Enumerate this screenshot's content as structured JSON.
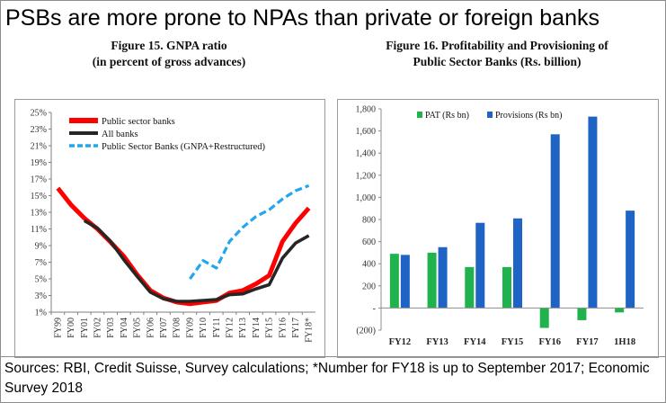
{
  "headline": "PSBs are more prone to NPAs than private or foreign banks",
  "sources": "Sources: RBI, Credit Suisse, Survey calculations; *Number for FY18 is up to September 2017; Economic Survey 2018",
  "chart_data": [
    {
      "type": "line",
      "title": "Figure 15. GNPA ratio",
      "subtitle": "(in percent of gross advances)",
      "x": [
        "FY99",
        "FY00",
        "FY01",
        "FY02",
        "FY03",
        "FY04",
        "FY05",
        "FY06",
        "FY07",
        "FY08",
        "FY09",
        "FY10",
        "FY11",
        "FY12",
        "FY13",
        "FY14",
        "FY15",
        "FY16",
        "FY17",
        "FY18*"
      ],
      "ylim": [
        1,
        25
      ],
      "yticks": [
        "1%",
        "3%",
        "5%",
        "7%",
        "9%",
        "11%",
        "13%",
        "15%",
        "17%",
        "19%",
        "21%",
        "23%",
        "25%"
      ],
      "grid": false,
      "legend_position": "top-left",
      "series": [
        {
          "name": "Public sector banks",
          "color": "#ff0000",
          "style": "solid",
          "values": [
            15.9,
            13.9,
            12.3,
            11.0,
            9.4,
            7.7,
            5.5,
            3.6,
            2.7,
            2.2,
            2.0,
            2.2,
            2.4,
            3.3,
            3.6,
            4.4,
            5.4,
            9.5,
            11.7,
            13.5
          ]
        },
        {
          "name": "All banks",
          "color": "#262626",
          "style": "solid",
          "values": [
            null,
            null,
            12.0,
            11.1,
            9.5,
            7.3,
            5.3,
            3.4,
            2.6,
            2.3,
            2.3,
            2.4,
            2.5,
            3.1,
            3.2,
            3.8,
            4.3,
            7.5,
            9.3,
            10.2
          ]
        },
        {
          "name": "Public Sector Banks (GNPA+Restructured)",
          "color": "#22a6ef",
          "style": "dashed",
          "values": [
            null,
            null,
            null,
            null,
            null,
            null,
            null,
            null,
            null,
            null,
            5.0,
            7.2,
            6.3,
            9.5,
            11.2,
            12.5,
            13.3,
            14.6,
            15.6,
            16.2
          ]
        }
      ]
    },
    {
      "type": "bar",
      "title": "Figure 16. Profitability and Provisioning of",
      "subtitle": "Public Sector Banks (Rs. billion)",
      "categories": [
        "FY12",
        "FY13",
        "FY14",
        "FY15",
        "FY16",
        "FY17",
        "1H18"
      ],
      "ylim": [
        -200,
        1800
      ],
      "yticks": [
        "(200)",
        "-",
        "200",
        "400",
        "600",
        "800",
        "1,000",
        "1,200",
        "1,400",
        "1,600",
        "1,800"
      ],
      "grid": false,
      "legend_position": "top-left",
      "series": [
        {
          "name": "PAT (Rs bn)",
          "color": "#20b24c",
          "values": [
            490,
            500,
            370,
            370,
            -180,
            -110,
            -40
          ]
        },
        {
          "name": "Provisions (Rs bn)",
          "color": "#1f64c4",
          "values": [
            480,
            550,
            770,
            810,
            1570,
            1730,
            880
          ]
        }
      ]
    }
  ]
}
